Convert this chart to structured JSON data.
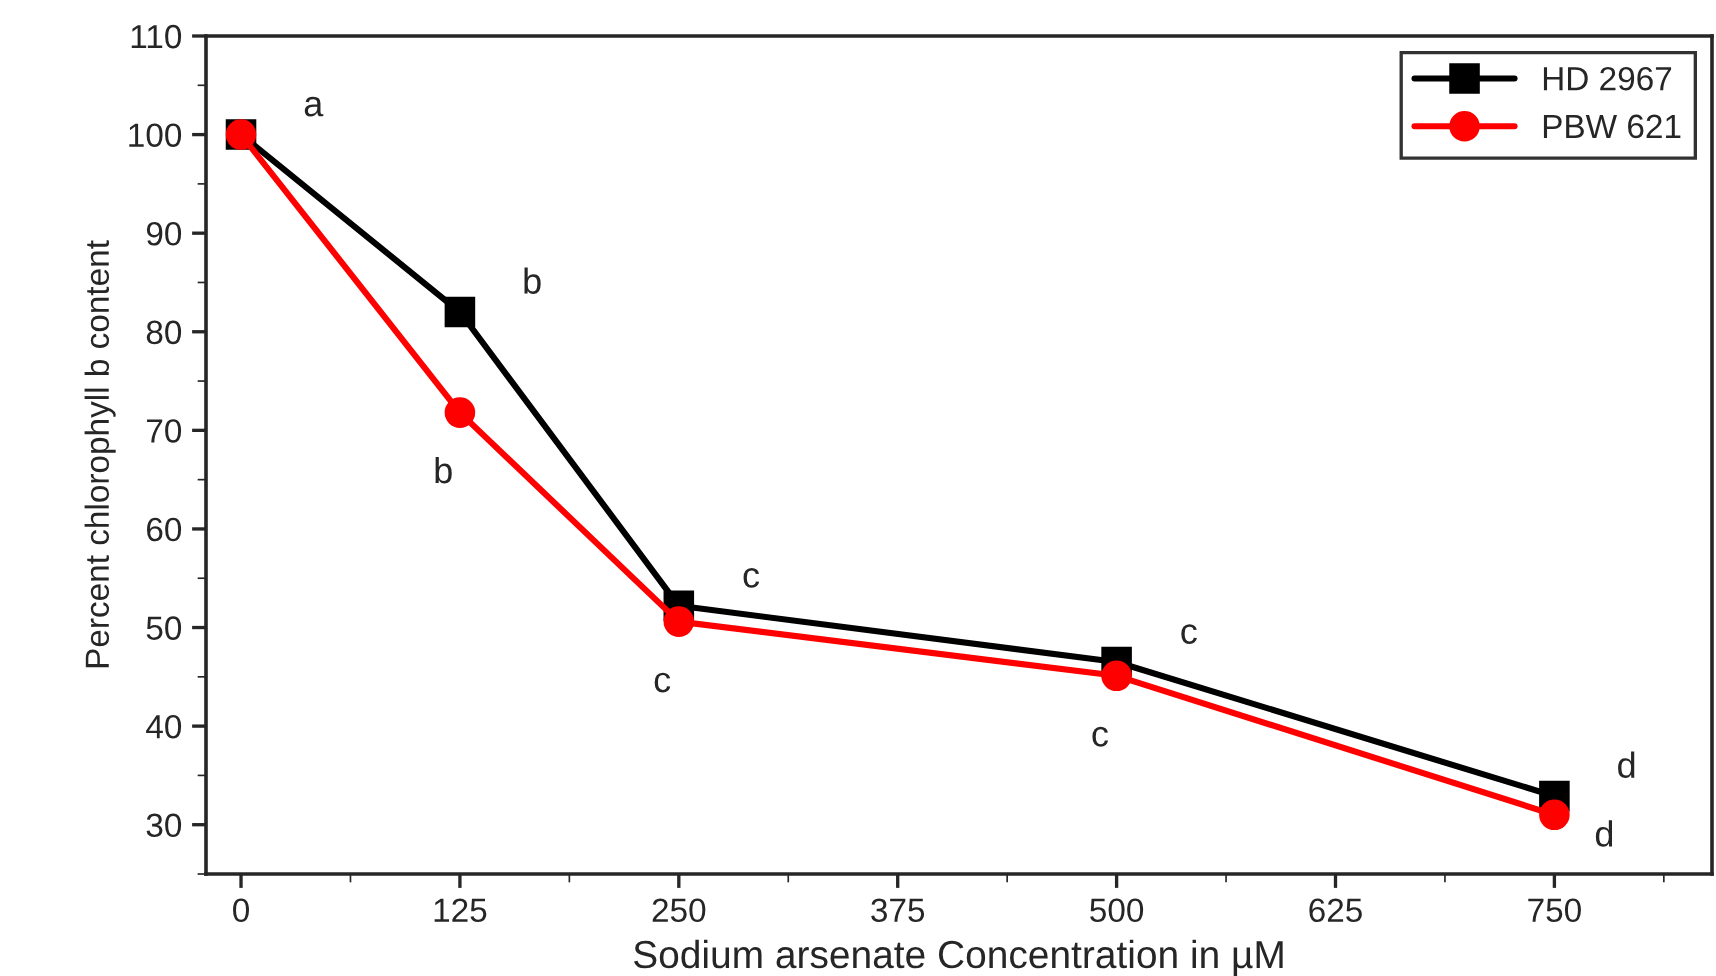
{
  "chart_data": {
    "type": "line",
    "xlabel": "Sodium arsenate Concentration in µM",
    "ylabel": "Percent chlorophyll b content",
    "x": [
      0,
      125,
      250,
      500,
      750
    ],
    "series": [
      {
        "name": "HD 2967",
        "color": "#000000",
        "marker": "square",
        "values": [
          100,
          82,
          52.2,
          46.5,
          32.9
        ]
      },
      {
        "name": "PBW 621",
        "color": "#ff0000",
        "marker": "circle",
        "values": [
          100,
          71.8,
          50.6,
          45.1,
          31
        ]
      }
    ],
    "xlim": [
      -20,
      840
    ],
    "xticks": [
      0,
      125,
      250,
      375,
      500,
      625,
      750
    ],
    "ylim": [
      25,
      110
    ],
    "yticks": [
      30,
      40,
      50,
      60,
      70,
      80,
      90,
      100,
      110
    ],
    "grid": false,
    "legend": "top right",
    "line_style": "solid",
    "annotations": [
      {
        "text": "a",
        "x": 0,
        "y": 100
      },
      {
        "text": "b",
        "x": 125,
        "y": 82
      },
      {
        "text": "b",
        "x": 125,
        "y": 71.8
      },
      {
        "text": "c",
        "x": 250,
        "y": 52.2
      },
      {
        "text": "c",
        "x": 250,
        "y": 50.6
      },
      {
        "text": "c",
        "x": 500,
        "y": 46.5
      },
      {
        "text": "c",
        "x": 500,
        "y": 45.1
      },
      {
        "text": "d",
        "x": 750,
        "y": 32.9
      },
      {
        "text": "d",
        "x": 750,
        "y": 31
      }
    ]
  }
}
